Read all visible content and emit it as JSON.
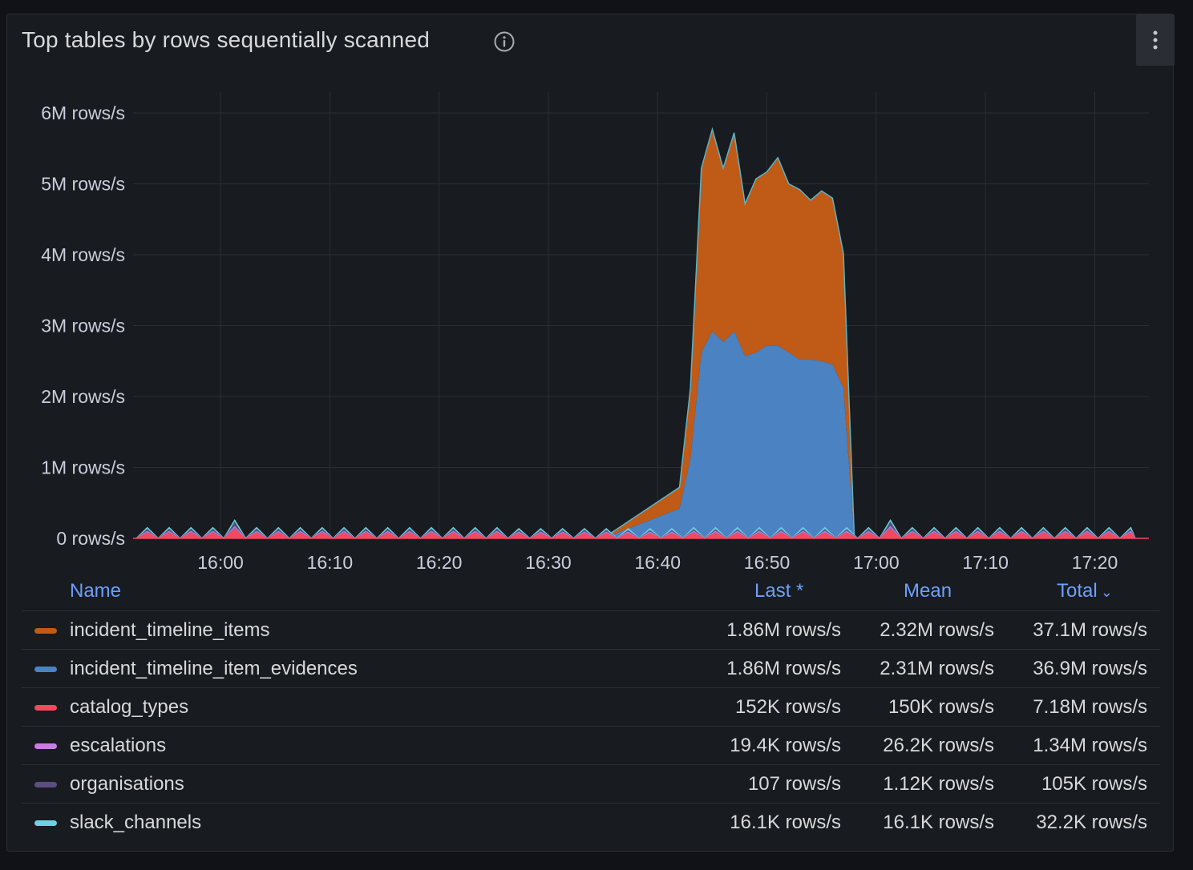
{
  "panel": {
    "title": "Top tables by rows sequentially scanned"
  },
  "legend": {
    "headers": {
      "name": "Name",
      "last": "Last *",
      "mean": "Mean",
      "total": "Total",
      "sort_indicator": "⌄"
    },
    "rows": [
      {
        "name": "incident_timeline_items",
        "color": "#c05a17",
        "last": "1.86M rows/s",
        "mean": "2.32M rows/s",
        "total": "37.1M rows/s"
      },
      {
        "name": "incident_timeline_item_evidences",
        "color": "#4a82c2",
        "last": "1.86M rows/s",
        "mean": "2.31M rows/s",
        "total": "36.9M rows/s"
      },
      {
        "name": "catalog_types",
        "color": "#f2495c",
        "last": "152K rows/s",
        "mean": "150K rows/s",
        "total": "7.18M rows/s"
      },
      {
        "name": "escalations",
        "color": "#c77ee0",
        "last": "19.4K rows/s",
        "mean": "26.2K rows/s",
        "total": "1.34M rows/s"
      },
      {
        "name": "organisations",
        "color": "#5c4d82",
        "last": "107 rows/s",
        "mean": "1.12K rows/s",
        "total": "105K rows/s"
      },
      {
        "name": "slack_channels",
        "color": "#6ed0e0",
        "last": "16.1K rows/s",
        "mean": "16.1K rows/s",
        "total": "32.2K rows/s"
      }
    ]
  },
  "chart_data": {
    "type": "area",
    "stacked": true,
    "title": "Top tables by rows sequentially scanned",
    "ylabel": "rows/s",
    "ylim": [
      0,
      6000000
    ],
    "yticks": [
      "0 rows/s",
      "1M rows/s",
      "2M rows/s",
      "3M rows/s",
      "4M rows/s",
      "5M rows/s",
      "6M rows/s"
    ],
    "xticks": [
      "16:00",
      "16:10",
      "16:20",
      "16:30",
      "16:40",
      "16:50",
      "17:00",
      "17:10",
      "17:20"
    ],
    "x_range_minutes": [
      "15:52",
      "17:24"
    ],
    "series": [
      {
        "name": "catalog_types",
        "color": "#f2495c"
      },
      {
        "name": "escalations",
        "color": "#c77ee0"
      },
      {
        "name": "organisations",
        "color": "#5c4d82"
      },
      {
        "name": "slack_channels",
        "color": "#6ed0e0"
      },
      {
        "name": "incident_timeline_item_evidences",
        "color": "#4a82c2",
        "points": [
          {
            "t": 16.35,
            "v": 0
          },
          {
            "t": 16.42,
            "v": 300000
          },
          {
            "t": 16.43,
            "v": 1000000
          },
          {
            "t": 16.44,
            "v": 2500000
          },
          {
            "t": 16.45,
            "v": 2800000
          },
          {
            "t": 16.46,
            "v": 2650000
          },
          {
            "t": 16.47,
            "v": 2800000
          },
          {
            "t": 16.48,
            "v": 2450000
          },
          {
            "t": 16.49,
            "v": 2500000
          },
          {
            "t": 16.5,
            "v": 2600000
          },
          {
            "t": 16.51,
            "v": 2600000
          },
          {
            "t": 16.52,
            "v": 2500000
          },
          {
            "t": 16.53,
            "v": 2400000
          },
          {
            "t": 16.54,
            "v": 2400000
          },
          {
            "t": 16.55,
            "v": 2380000
          },
          {
            "t": 16.56,
            "v": 2330000
          },
          {
            "t": 16.57,
            "v": 2000000
          },
          {
            "t": 16.58,
            "v": 0
          }
        ]
      },
      {
        "name": "incident_timeline_items",
        "color": "#c05a17",
        "points": [
          {
            "t": 16.35,
            "v": 0
          },
          {
            "t": 16.42,
            "v": 300000
          },
          {
            "t": 16.43,
            "v": 1000000
          },
          {
            "t": 16.44,
            "v": 2600000
          },
          {
            "t": 16.45,
            "v": 2850000
          },
          {
            "t": 16.46,
            "v": 2450000
          },
          {
            "t": 16.47,
            "v": 2800000
          },
          {
            "t": 16.48,
            "v": 2150000
          },
          {
            "t": 16.49,
            "v": 2450000
          },
          {
            "t": 16.5,
            "v": 2450000
          },
          {
            "t": 16.51,
            "v": 2650000
          },
          {
            "t": 16.52,
            "v": 2380000
          },
          {
            "t": 16.53,
            "v": 2400000
          },
          {
            "t": 16.54,
            "v": 2250000
          },
          {
            "t": 16.55,
            "v": 2400000
          },
          {
            "t": 16.56,
            "v": 2350000
          },
          {
            "t": 16.57,
            "v": 1900000
          },
          {
            "t": 16.58,
            "v": 0
          }
        ]
      }
    ]
  }
}
